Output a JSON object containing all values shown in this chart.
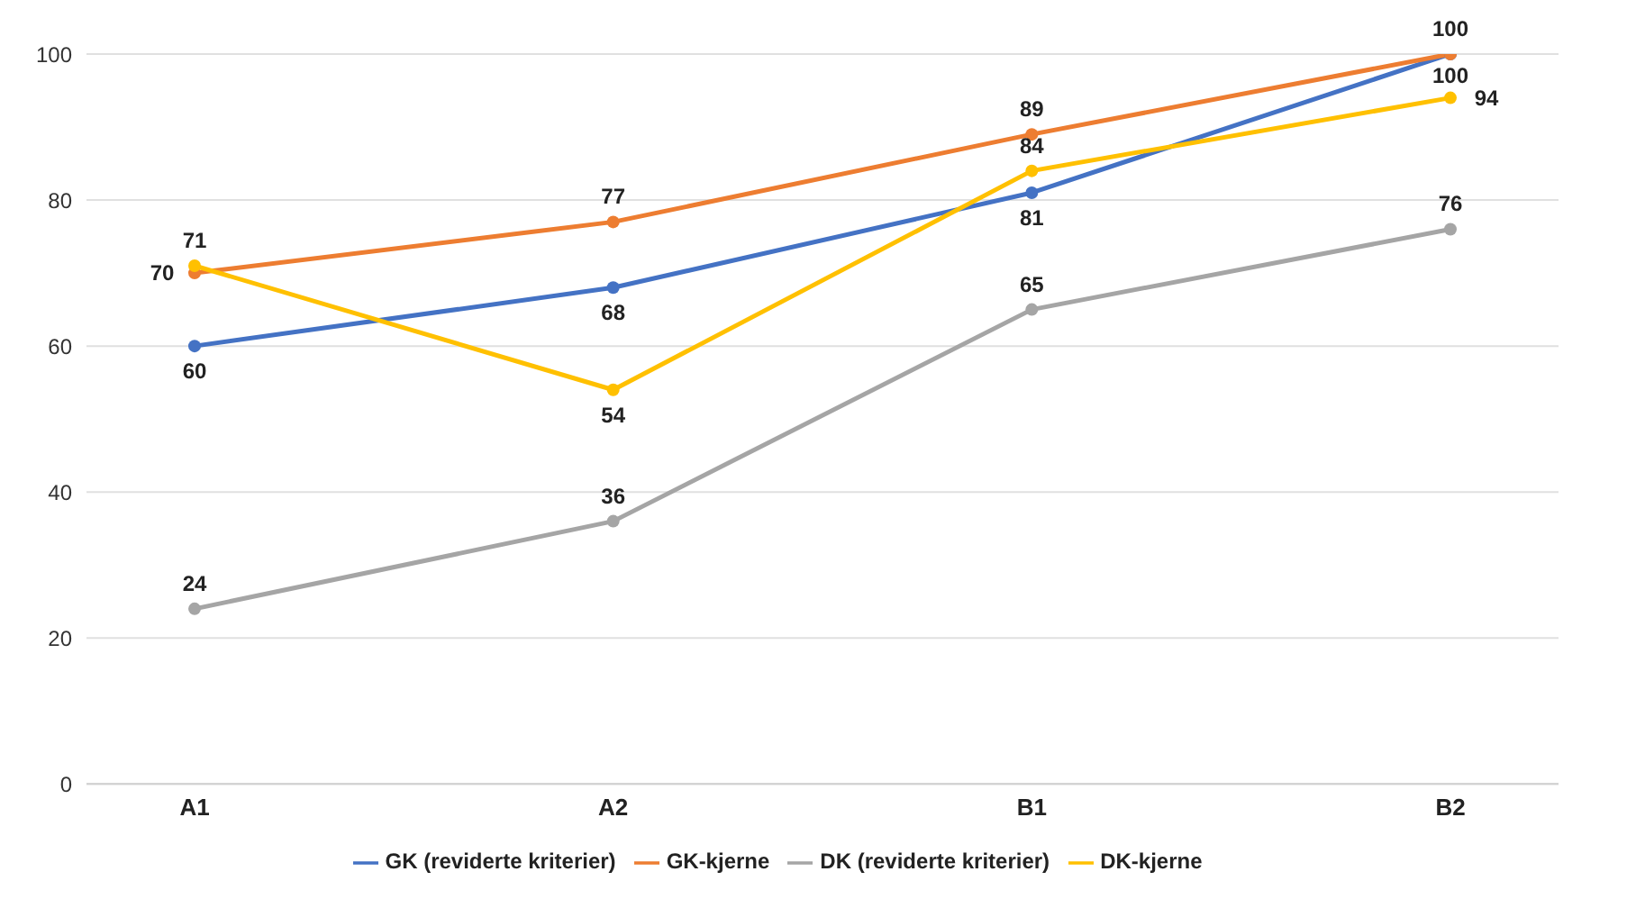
{
  "chart_data": {
    "type": "line",
    "categories": [
      "A1",
      "A2",
      "B1",
      "B2"
    ],
    "series": [
      {
        "name": "GK (reviderte kriterier)",
        "color": "#4472c4",
        "values": [
          60,
          68,
          81,
          100
        ]
      },
      {
        "name": "GK-kjerne",
        "color": "#ed7d31",
        "values": [
          70,
          77,
          89,
          100
        ]
      },
      {
        "name": "DK (reviderte kriterier)",
        "color": "#a5a5a5",
        "values": [
          24,
          36,
          65,
          76
        ]
      },
      {
        "name": "DK-kjerne",
        "color": "#ffc000",
        "values": [
          71,
          54,
          84,
          94
        ]
      }
    ],
    "ylim": [
      0,
      100
    ],
    "yticks": [
      0,
      20,
      40,
      60,
      80,
      100
    ],
    "grid": "y",
    "legend": "bottom",
    "marker": "circle",
    "line_style": "solid",
    "data_labels": true
  }
}
